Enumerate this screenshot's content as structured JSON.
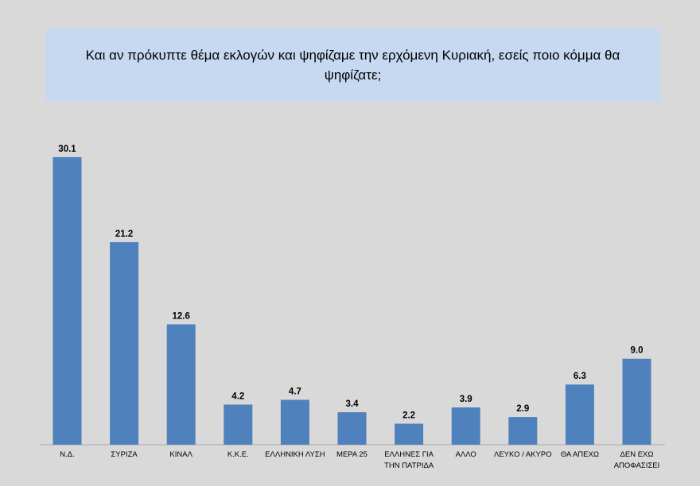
{
  "chart_data": {
    "type": "bar",
    "title": "Και αν πρόκυπτε θέμα εκλογών και ψηφίζαμε την ερχόμενη Κυριακή, εσείς ποιο κόμμα θα ψηφίζατε;",
    "categories": [
      "Ν.Δ.",
      "ΣΥΡΙΖΑ",
      "ΚΙΝΑΛ",
      "Κ.Κ.Ε.",
      "ΕΛΛΗΝΙΚΗ ΛΥΣΗ",
      "ΜΕΡΑ 25",
      "ΕΛΛΗΝΕΣ ΓΙΑ ΤΗΝ ΠΑΤΡΙΔΑ",
      "ΑΛΛΟ",
      "ΛΕΥΚΟ / ΑΚΥΡΟ",
      "ΘΑ ΑΠΕΧΩ",
      "ΔΕΝ ΕΧΩ ΑΠΟΦΑΣΙΣΕΙ"
    ],
    "values": [
      30.1,
      21.2,
      12.6,
      4.2,
      4.7,
      3.4,
      2.2,
      3.9,
      2.9,
      6.3,
      9.0
    ],
    "value_labels": [
      "30.1",
      "21.2",
      "12.6",
      "4.2",
      "4.7",
      "3.4",
      "2.2",
      "3.9",
      "2.9",
      "6.3",
      "9.0"
    ],
    "color": "#4f81bd"
  }
}
